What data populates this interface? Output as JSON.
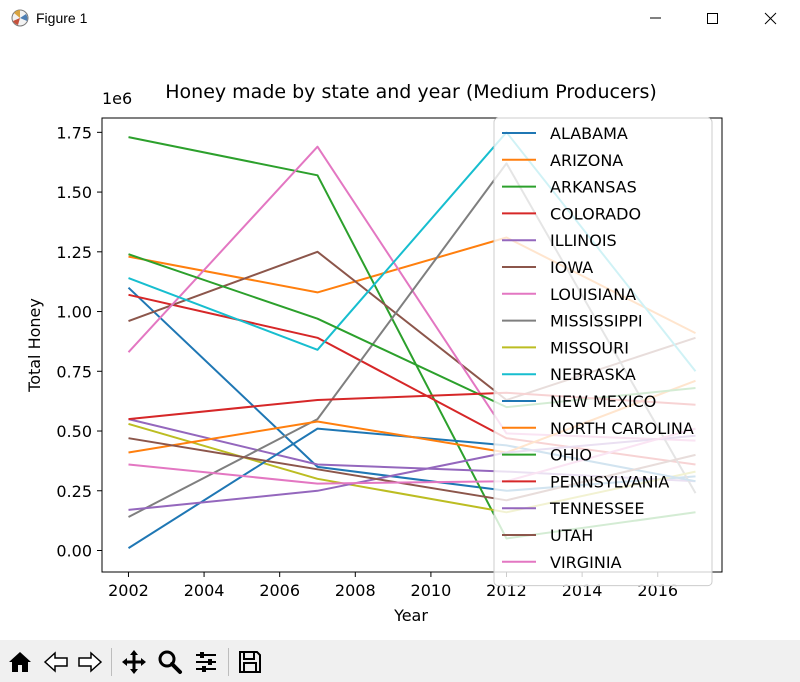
{
  "window": {
    "title": "Figure 1",
    "buttons": [
      "minimize",
      "maximize",
      "close"
    ]
  },
  "toolbar": {
    "icons": [
      "home-icon",
      "back-arrow-icon",
      "forward-arrow-icon",
      "pan-icon",
      "zoom-icon",
      "configure-subplots-icon",
      "save-icon"
    ]
  },
  "colors": {
    "tab_blue": "#1f77b4",
    "tab_orange": "#ff7f0e",
    "tab_green": "#2ca02c",
    "tab_red": "#d62728",
    "tab_purple": "#9467bd",
    "tab_brown": "#8c564b",
    "tab_pink": "#e377c2",
    "tab_gray": "#7f7f7f",
    "tab_olive": "#bcbd22",
    "tab_cyan": "#17becf"
  },
  "chart_data": {
    "type": "line",
    "title": "Honey made by state and year (Medium Producers)",
    "xlabel": "Year",
    "ylabel": "Total Honey",
    "y_offset_label": "1e6",
    "xlim": [
      2001.3,
      2017.7
    ],
    "ylim": [
      -0.09,
      1.81
    ],
    "xticks": [
      2002,
      2004,
      2006,
      2008,
      2010,
      2012,
      2014,
      2016
    ],
    "xtick_labels": [
      "2002",
      "2004",
      "2006",
      "2008",
      "2010",
      "2012",
      "2014",
      "2016"
    ],
    "yticks": [
      0.0,
      0.25,
      0.5,
      0.75,
      1.0,
      1.25,
      1.5,
      1.75
    ],
    "ytick_labels": [
      "0.00",
      "0.25",
      "0.50",
      "0.75",
      "1.00",
      "1.25",
      "1.50",
      "1.75"
    ],
    "x": [
      2002,
      2007,
      2012,
      2017
    ],
    "grid": false,
    "legend_position": "upper right",
    "series": [
      {
        "name": "ALABAMA",
        "color": "#1f77b4",
        "values": [
          1.1,
          0.35,
          0.25,
          0.31
        ]
      },
      {
        "name": "ARIZONA",
        "color": "#ff7f0e",
        "values": [
          1.23,
          1.08,
          1.31,
          0.91
        ]
      },
      {
        "name": "ARKANSAS",
        "color": "#2ca02c",
        "values": [
          1.73,
          1.57,
          0.05,
          0.16
        ]
      },
      {
        "name": "COLORADO",
        "color": "#d62728",
        "values": [
          1.07,
          0.89,
          0.47,
          0.36
        ]
      },
      {
        "name": "ILLINOIS",
        "color": "#9467bd",
        "values": [
          0.55,
          0.36,
          0.33,
          0.29
        ]
      },
      {
        "name": "IOWA",
        "color": "#8c564b",
        "values": [
          0.96,
          1.25,
          0.63,
          0.89
        ]
      },
      {
        "name": "LOUISIANA",
        "color": "#e377c2",
        "values": [
          0.83,
          1.69,
          0.49,
          0.46
        ]
      },
      {
        "name": "MISSISSIPPI",
        "color": "#7f7f7f",
        "values": [
          0.14,
          0.55,
          1.62,
          0.24
        ]
      },
      {
        "name": "MISSOURI",
        "color": "#bcbd22",
        "values": [
          0.53,
          0.3,
          0.16,
          0.33
        ]
      },
      {
        "name": "NEBRASKA",
        "color": "#17becf",
        "values": [
          1.14,
          0.84,
          1.75,
          0.75
        ]
      },
      {
        "name": "NEW MEXICO",
        "color": "#1f77b4",
        "values": [
          0.01,
          0.51,
          0.44,
          0.29
        ]
      },
      {
        "name": "NORTH CAROLINA",
        "color": "#ff7f0e",
        "values": [
          0.41,
          0.54,
          0.41,
          0.71
        ]
      },
      {
        "name": "OHIO",
        "color": "#2ca02c",
        "values": [
          1.24,
          0.97,
          0.6,
          0.68
        ]
      },
      {
        "name": "PENNSYLVANIA",
        "color": "#d62728",
        "values": [
          0.55,
          0.63,
          0.66,
          0.61
        ]
      },
      {
        "name": "TENNESSEE",
        "color": "#9467bd",
        "values": [
          0.17,
          0.25,
          0.41,
          0.48
        ]
      },
      {
        "name": "UTAH",
        "color": "#8c564b",
        "values": [
          0.47,
          0.34,
          0.21,
          0.4
        ]
      },
      {
        "name": "VIRGINIA",
        "color": "#e377c2",
        "values": [
          0.36,
          0.28,
          0.29,
          0.51
        ]
      }
    ]
  }
}
